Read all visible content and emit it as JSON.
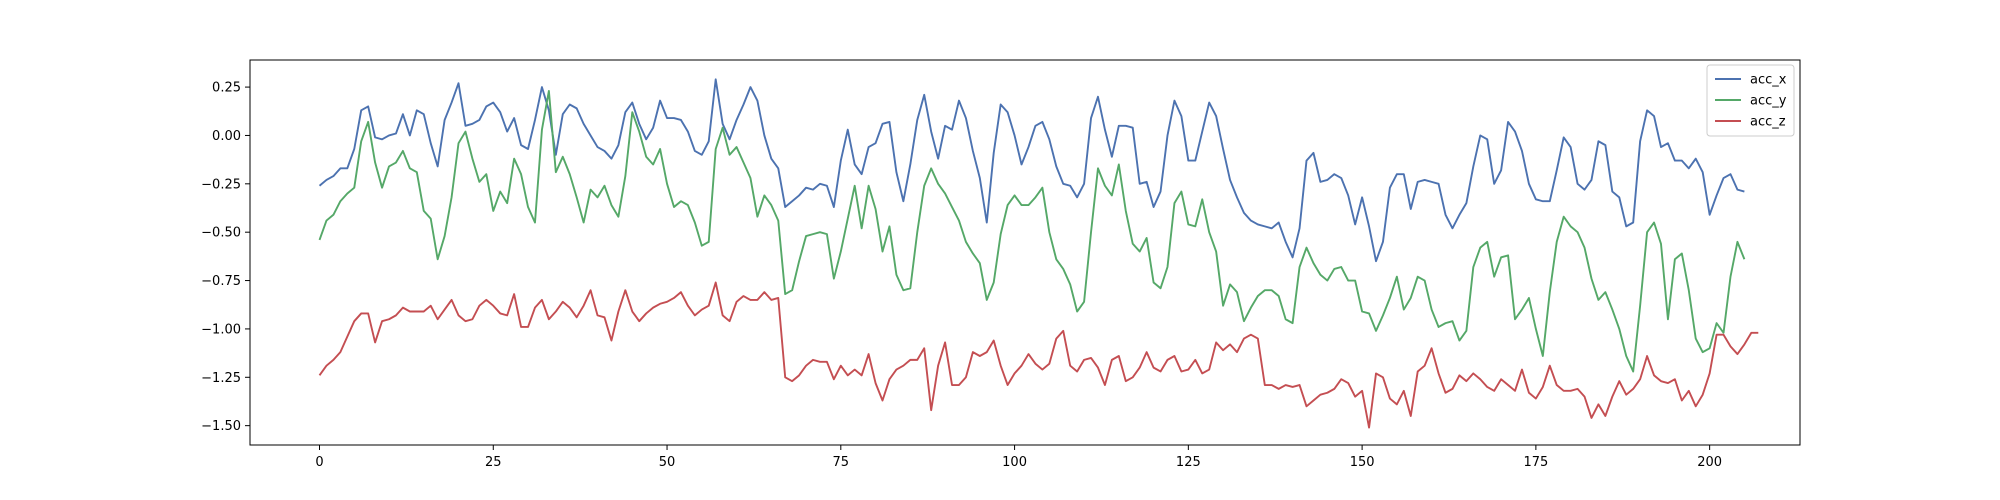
{
  "chart_data": {
    "type": "line",
    "title": "",
    "xlabel": "",
    "ylabel": "",
    "xlim": [
      -10,
      213
    ],
    "ylim": [
      -1.6,
      0.39
    ],
    "xticks": [
      0,
      25,
      50,
      75,
      100,
      125,
      150,
      175,
      200
    ],
    "yticks": [
      0.25,
      0.0,
      -0.25,
      -0.5,
      -0.75,
      -1.0,
      -1.25,
      -1.5
    ],
    "grid": false,
    "legend_position": "top-right",
    "series": [
      {
        "name": "acc_x",
        "color": "#4c72b0",
        "values": [
          -0.26,
          -0.23,
          -0.21,
          -0.17,
          -0.17,
          -0.07,
          0.13,
          0.15,
          -0.01,
          -0.02,
          0.0,
          0.01,
          0.11,
          0.0,
          0.13,
          0.11,
          -0.04,
          -0.16,
          0.08,
          0.17,
          0.27,
          0.05,
          0.06,
          0.08,
          0.15,
          0.17,
          0.12,
          0.02,
          0.09,
          -0.05,
          -0.07,
          0.08,
          0.25,
          0.13,
          -0.1,
          0.11,
          0.16,
          0.14,
          0.06,
          0.0,
          -0.06,
          -0.08,
          -0.12,
          -0.05,
          0.12,
          0.17,
          0.06,
          -0.02,
          0.04,
          0.18,
          0.09,
          0.09,
          0.08,
          0.02,
          -0.08,
          -0.1,
          -0.03,
          0.29,
          0.06,
          -0.02,
          0.08,
          0.16,
          0.25,
          0.18,
          0.0,
          -0.12,
          -0.17,
          -0.37,
          -0.34,
          -0.31,
          -0.27,
          -0.28,
          -0.25,
          -0.26,
          -0.37,
          -0.13,
          0.03,
          -0.15,
          -0.2,
          -0.06,
          -0.04,
          0.06,
          0.07,
          -0.19,
          -0.34,
          -0.15,
          0.08,
          0.21,
          0.02,
          -0.12,
          0.05,
          0.03,
          0.18,
          0.09,
          -0.08,
          -0.22,
          -0.45,
          -0.09,
          0.16,
          0.12,
          0.0,
          -0.15,
          -0.06,
          0.05,
          0.07,
          -0.02,
          -0.16,
          -0.25,
          -0.26,
          -0.32,
          -0.25,
          0.09,
          0.2,
          0.03,
          -0.11,
          0.05,
          0.05,
          0.04,
          -0.25,
          -0.24,
          -0.37,
          -0.29,
          0.0,
          0.18,
          0.1,
          -0.13,
          -0.13,
          0.02,
          0.17,
          0.1,
          -0.07,
          -0.23,
          -0.32,
          -0.4,
          -0.44,
          -0.46,
          -0.47,
          -0.48,
          -0.45,
          -0.55,
          -0.63,
          -0.48,
          -0.13,
          -0.09,
          -0.24,
          -0.23,
          -0.2,
          -0.22,
          -0.31,
          -0.46,
          -0.32,
          -0.47,
          -0.65,
          -0.55,
          -0.27,
          -0.2,
          -0.2,
          -0.38,
          -0.24,
          -0.23,
          -0.24,
          -0.25,
          -0.41,
          -0.48,
          -0.41,
          -0.35,
          -0.16,
          0.0,
          -0.02,
          -0.25,
          -0.18,
          0.07,
          0.02,
          -0.08,
          -0.25,
          -0.33,
          -0.34,
          -0.34,
          -0.18,
          -0.01,
          -0.06,
          -0.25,
          -0.28,
          -0.23,
          -0.03,
          -0.05,
          -0.29,
          -0.32,
          -0.47,
          -0.45,
          -0.03,
          0.13,
          0.1,
          -0.06,
          -0.04,
          -0.13,
          -0.13,
          -0.17,
          -0.12,
          -0.19,
          -0.41,
          -0.31,
          -0.22,
          -0.2,
          -0.28,
          -0.29
        ]
      },
      {
        "name": "acc_y",
        "color": "#55a868",
        "values": [
          -0.54,
          -0.44,
          -0.41,
          -0.34,
          -0.3,
          -0.27,
          -0.03,
          0.07,
          -0.14,
          -0.27,
          -0.16,
          -0.14,
          -0.08,
          -0.17,
          -0.19,
          -0.39,
          -0.43,
          -0.64,
          -0.52,
          -0.32,
          -0.04,
          0.02,
          -0.12,
          -0.24,
          -0.2,
          -0.39,
          -0.29,
          -0.35,
          -0.12,
          -0.2,
          -0.37,
          -0.45,
          0.03,
          0.23,
          -0.19,
          -0.11,
          -0.2,
          -0.32,
          -0.45,
          -0.28,
          -0.32,
          -0.26,
          -0.36,
          -0.42,
          -0.21,
          0.12,
          0.02,
          -0.11,
          -0.15,
          -0.07,
          -0.25,
          -0.37,
          -0.34,
          -0.36,
          -0.45,
          -0.57,
          -0.55,
          -0.07,
          0.04,
          -0.1,
          -0.06,
          -0.14,
          -0.22,
          -0.42,
          -0.31,
          -0.36,
          -0.44,
          -0.82,
          -0.8,
          -0.65,
          -0.52,
          -0.51,
          -0.5,
          -0.51,
          -0.74,
          -0.6,
          -0.43,
          -0.26,
          -0.48,
          -0.26,
          -0.38,
          -0.6,
          -0.47,
          -0.72,
          -0.8,
          -0.79,
          -0.5,
          -0.26,
          -0.17,
          -0.25,
          -0.3,
          -0.37,
          -0.44,
          -0.55,
          -0.61,
          -0.66,
          -0.85,
          -0.76,
          -0.51,
          -0.36,
          -0.31,
          -0.36,
          -0.36,
          -0.32,
          -0.27,
          -0.5,
          -0.64,
          -0.69,
          -0.77,
          -0.91,
          -0.86,
          -0.5,
          -0.17,
          -0.26,
          -0.31,
          -0.15,
          -0.39,
          -0.56,
          -0.6,
          -0.53,
          -0.76,
          -0.79,
          -0.68,
          -0.35,
          -0.29,
          -0.46,
          -0.47,
          -0.33,
          -0.5,
          -0.6,
          -0.88,
          -0.77,
          -0.81,
          -0.96,
          -0.89,
          -0.83,
          -0.8,
          -0.8,
          -0.83,
          -0.95,
          -0.97,
          -0.68,
          -0.58,
          -0.66,
          -0.72,
          -0.75,
          -0.69,
          -0.68,
          -0.75,
          -0.75,
          -0.91,
          -0.92,
          -1.01,
          -0.93,
          -0.84,
          -0.73,
          -0.9,
          -0.84,
          -0.73,
          -0.75,
          -0.9,
          -0.99,
          -0.97,
          -0.96,
          -1.06,
          -1.01,
          -0.68,
          -0.58,
          -0.55,
          -0.73,
          -0.63,
          -0.62,
          -0.95,
          -0.9,
          -0.84,
          -1.0,
          -1.14,
          -0.81,
          -0.55,
          -0.42,
          -0.47,
          -0.5,
          -0.58,
          -0.74,
          -0.85,
          -0.81,
          -0.9,
          -1.0,
          -1.14,
          -1.22,
          -0.88,
          -0.5,
          -0.45,
          -0.56,
          -0.95,
          -0.64,
          -0.61,
          -0.8,
          -1.05,
          -1.12,
          -1.1,
          -0.97,
          -1.02,
          -0.73,
          -0.55,
          -0.64
        ]
      },
      {
        "name": "acc_z",
        "color": "#c44e52",
        "values": [
          -1.24,
          -1.19,
          -1.16,
          -1.12,
          -1.04,
          -0.96,
          -0.92,
          -0.92,
          -1.07,
          -0.96,
          -0.95,
          -0.93,
          -0.89,
          -0.91,
          -0.91,
          -0.91,
          -0.88,
          -0.95,
          -0.9,
          -0.85,
          -0.93,
          -0.96,
          -0.95,
          -0.88,
          -0.85,
          -0.88,
          -0.92,
          -0.93,
          -0.82,
          -0.99,
          -0.99,
          -0.89,
          -0.85,
          -0.95,
          -0.91,
          -0.86,
          -0.89,
          -0.94,
          -0.88,
          -0.8,
          -0.93,
          -0.94,
          -1.06,
          -0.91,
          -0.8,
          -0.91,
          -0.96,
          -0.92,
          -0.89,
          -0.87,
          -0.86,
          -0.84,
          -0.81,
          -0.88,
          -0.93,
          -0.9,
          -0.88,
          -0.76,
          -0.93,
          -0.96,
          -0.86,
          -0.83,
          -0.85,
          -0.85,
          -0.81,
          -0.85,
          -0.84,
          -1.25,
          -1.27,
          -1.24,
          -1.19,
          -1.16,
          -1.17,
          -1.17,
          -1.26,
          -1.19,
          -1.24,
          -1.21,
          -1.24,
          -1.13,
          -1.28,
          -1.37,
          -1.26,
          -1.21,
          -1.19,
          -1.16,
          -1.16,
          -1.1,
          -1.42,
          -1.19,
          -1.07,
          -1.29,
          -1.29,
          -1.25,
          -1.12,
          -1.14,
          -1.12,
          -1.06,
          -1.19,
          -1.29,
          -1.23,
          -1.19,
          -1.13,
          -1.18,
          -1.21,
          -1.18,
          -1.05,
          -1.01,
          -1.19,
          -1.22,
          -1.16,
          -1.15,
          -1.2,
          -1.29,
          -1.16,
          -1.14,
          -1.27,
          -1.25,
          -1.2,
          -1.12,
          -1.2,
          -1.22,
          -1.16,
          -1.14,
          -1.22,
          -1.21,
          -1.16,
          -1.23,
          -1.21,
          -1.07,
          -1.11,
          -1.08,
          -1.12,
          -1.05,
          -1.03,
          -1.05,
          -1.29,
          -1.29,
          -1.31,
          -1.29,
          -1.3,
          -1.29,
          -1.4,
          -1.37,
          -1.34,
          -1.33,
          -1.31,
          -1.26,
          -1.28,
          -1.35,
          -1.32,
          -1.51,
          -1.23,
          -1.25,
          -1.36,
          -1.39,
          -1.32,
          -1.45,
          -1.22,
          -1.19,
          -1.1,
          -1.23,
          -1.33,
          -1.31,
          -1.24,
          -1.27,
          -1.23,
          -1.26,
          -1.3,
          -1.32,
          -1.26,
          -1.29,
          -1.32,
          -1.21,
          -1.33,
          -1.36,
          -1.3,
          -1.19,
          -1.29,
          -1.32,
          -1.32,
          -1.31,
          -1.35,
          -1.46,
          -1.39,
          -1.45,
          -1.35,
          -1.27,
          -1.34,
          -1.31,
          -1.26,
          -1.14,
          -1.24,
          -1.27,
          -1.28,
          -1.26,
          -1.37,
          -1.32,
          -1.4,
          -1.34,
          -1.23,
          -1.03,
          -1.03,
          -1.09,
          -1.13,
          -1.08,
          -1.02,
          -1.02
        ]
      }
    ]
  }
}
